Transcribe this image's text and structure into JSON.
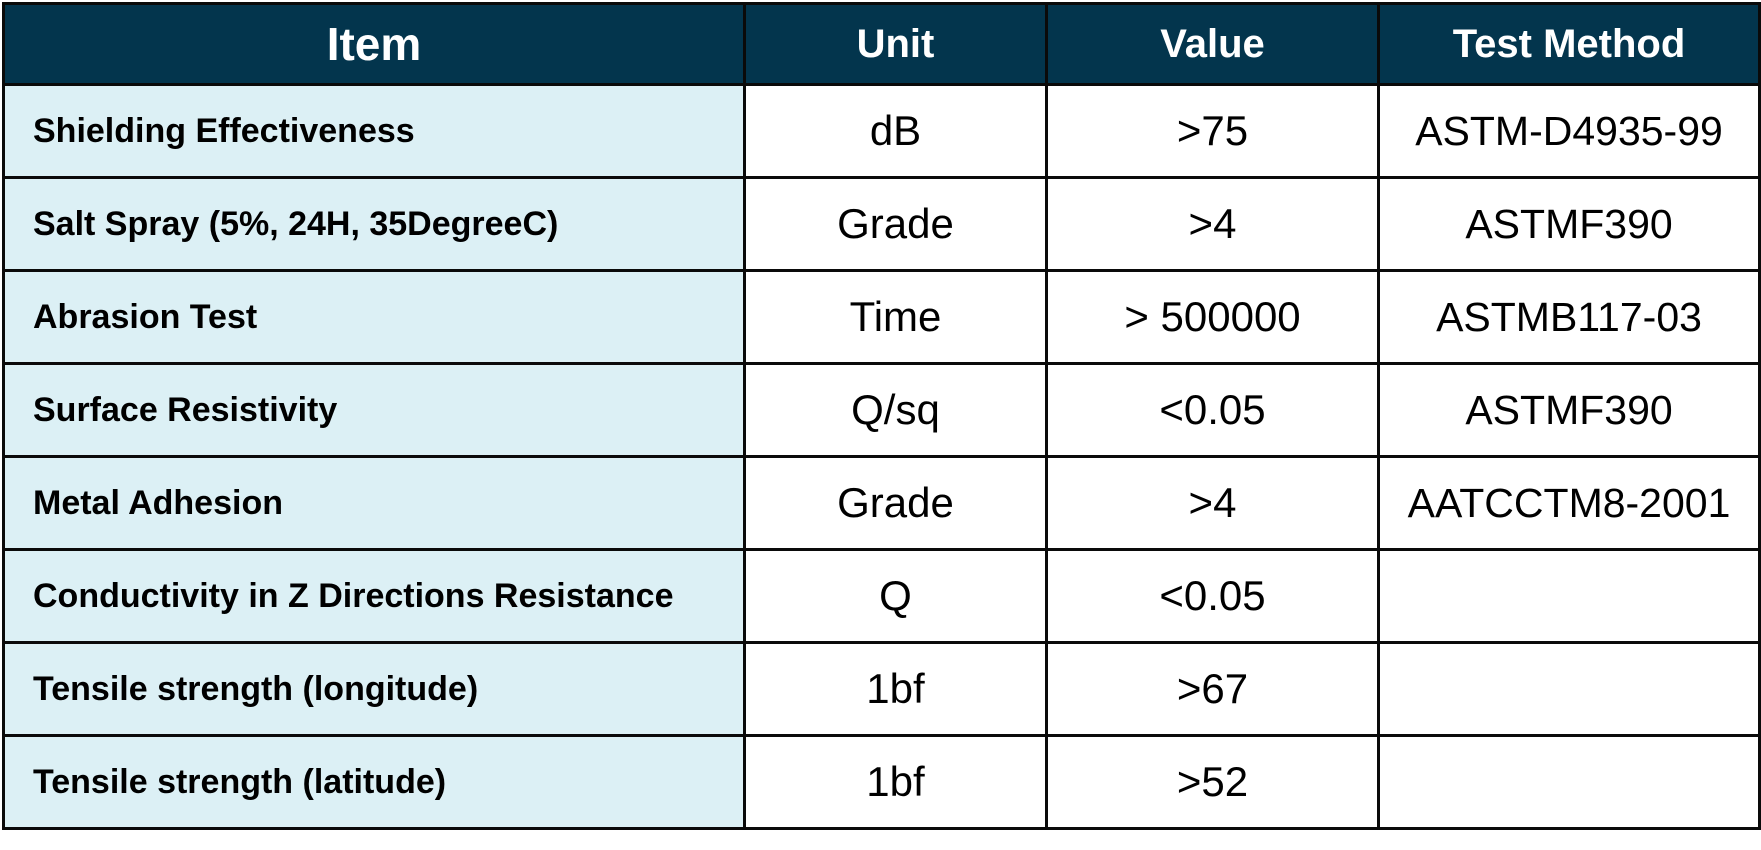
{
  "table": {
    "headers": {
      "item": "Item",
      "unit": "Unit",
      "value": "Value",
      "method": "Test Method"
    },
    "rows": [
      {
        "item": "Shielding Effectiveness",
        "unit": "dB",
        "value": ">75",
        "method": "ASTM-D4935-99"
      },
      {
        "item": "Salt Spray (5%, 24H, 35DegreeC)",
        "unit": "Grade",
        "value": ">4",
        "method": "ASTMF390"
      },
      {
        "item": "Abrasion Test",
        "unit": "Time",
        "value": "> 500000",
        "method": "ASTMB117-03"
      },
      {
        "item": "Surface Resistivity",
        "unit": "Q/sq",
        "value": "<0.05",
        "method": "ASTMF390"
      },
      {
        "item": "Metal Adhesion",
        "unit": "Grade",
        "value": ">4",
        "method": "AATCCTM8-2001"
      },
      {
        "item": "Conductivity in Z Directions Resistance",
        "unit": "Q",
        "value": "<0.05",
        "method": ""
      },
      {
        "item": "Tensile strength (longitude)",
        "unit": "1bf",
        "value": ">67",
        "method": ""
      },
      {
        "item": "Tensile strength (latitude)",
        "unit": "1bf",
        "value": ">52",
        "method": ""
      }
    ]
  },
  "colors": {
    "header_bg": "#03354d",
    "header_text": "#ffffff",
    "item_cell_bg": "#dcf0f5",
    "border": "#0a0a0a"
  }
}
